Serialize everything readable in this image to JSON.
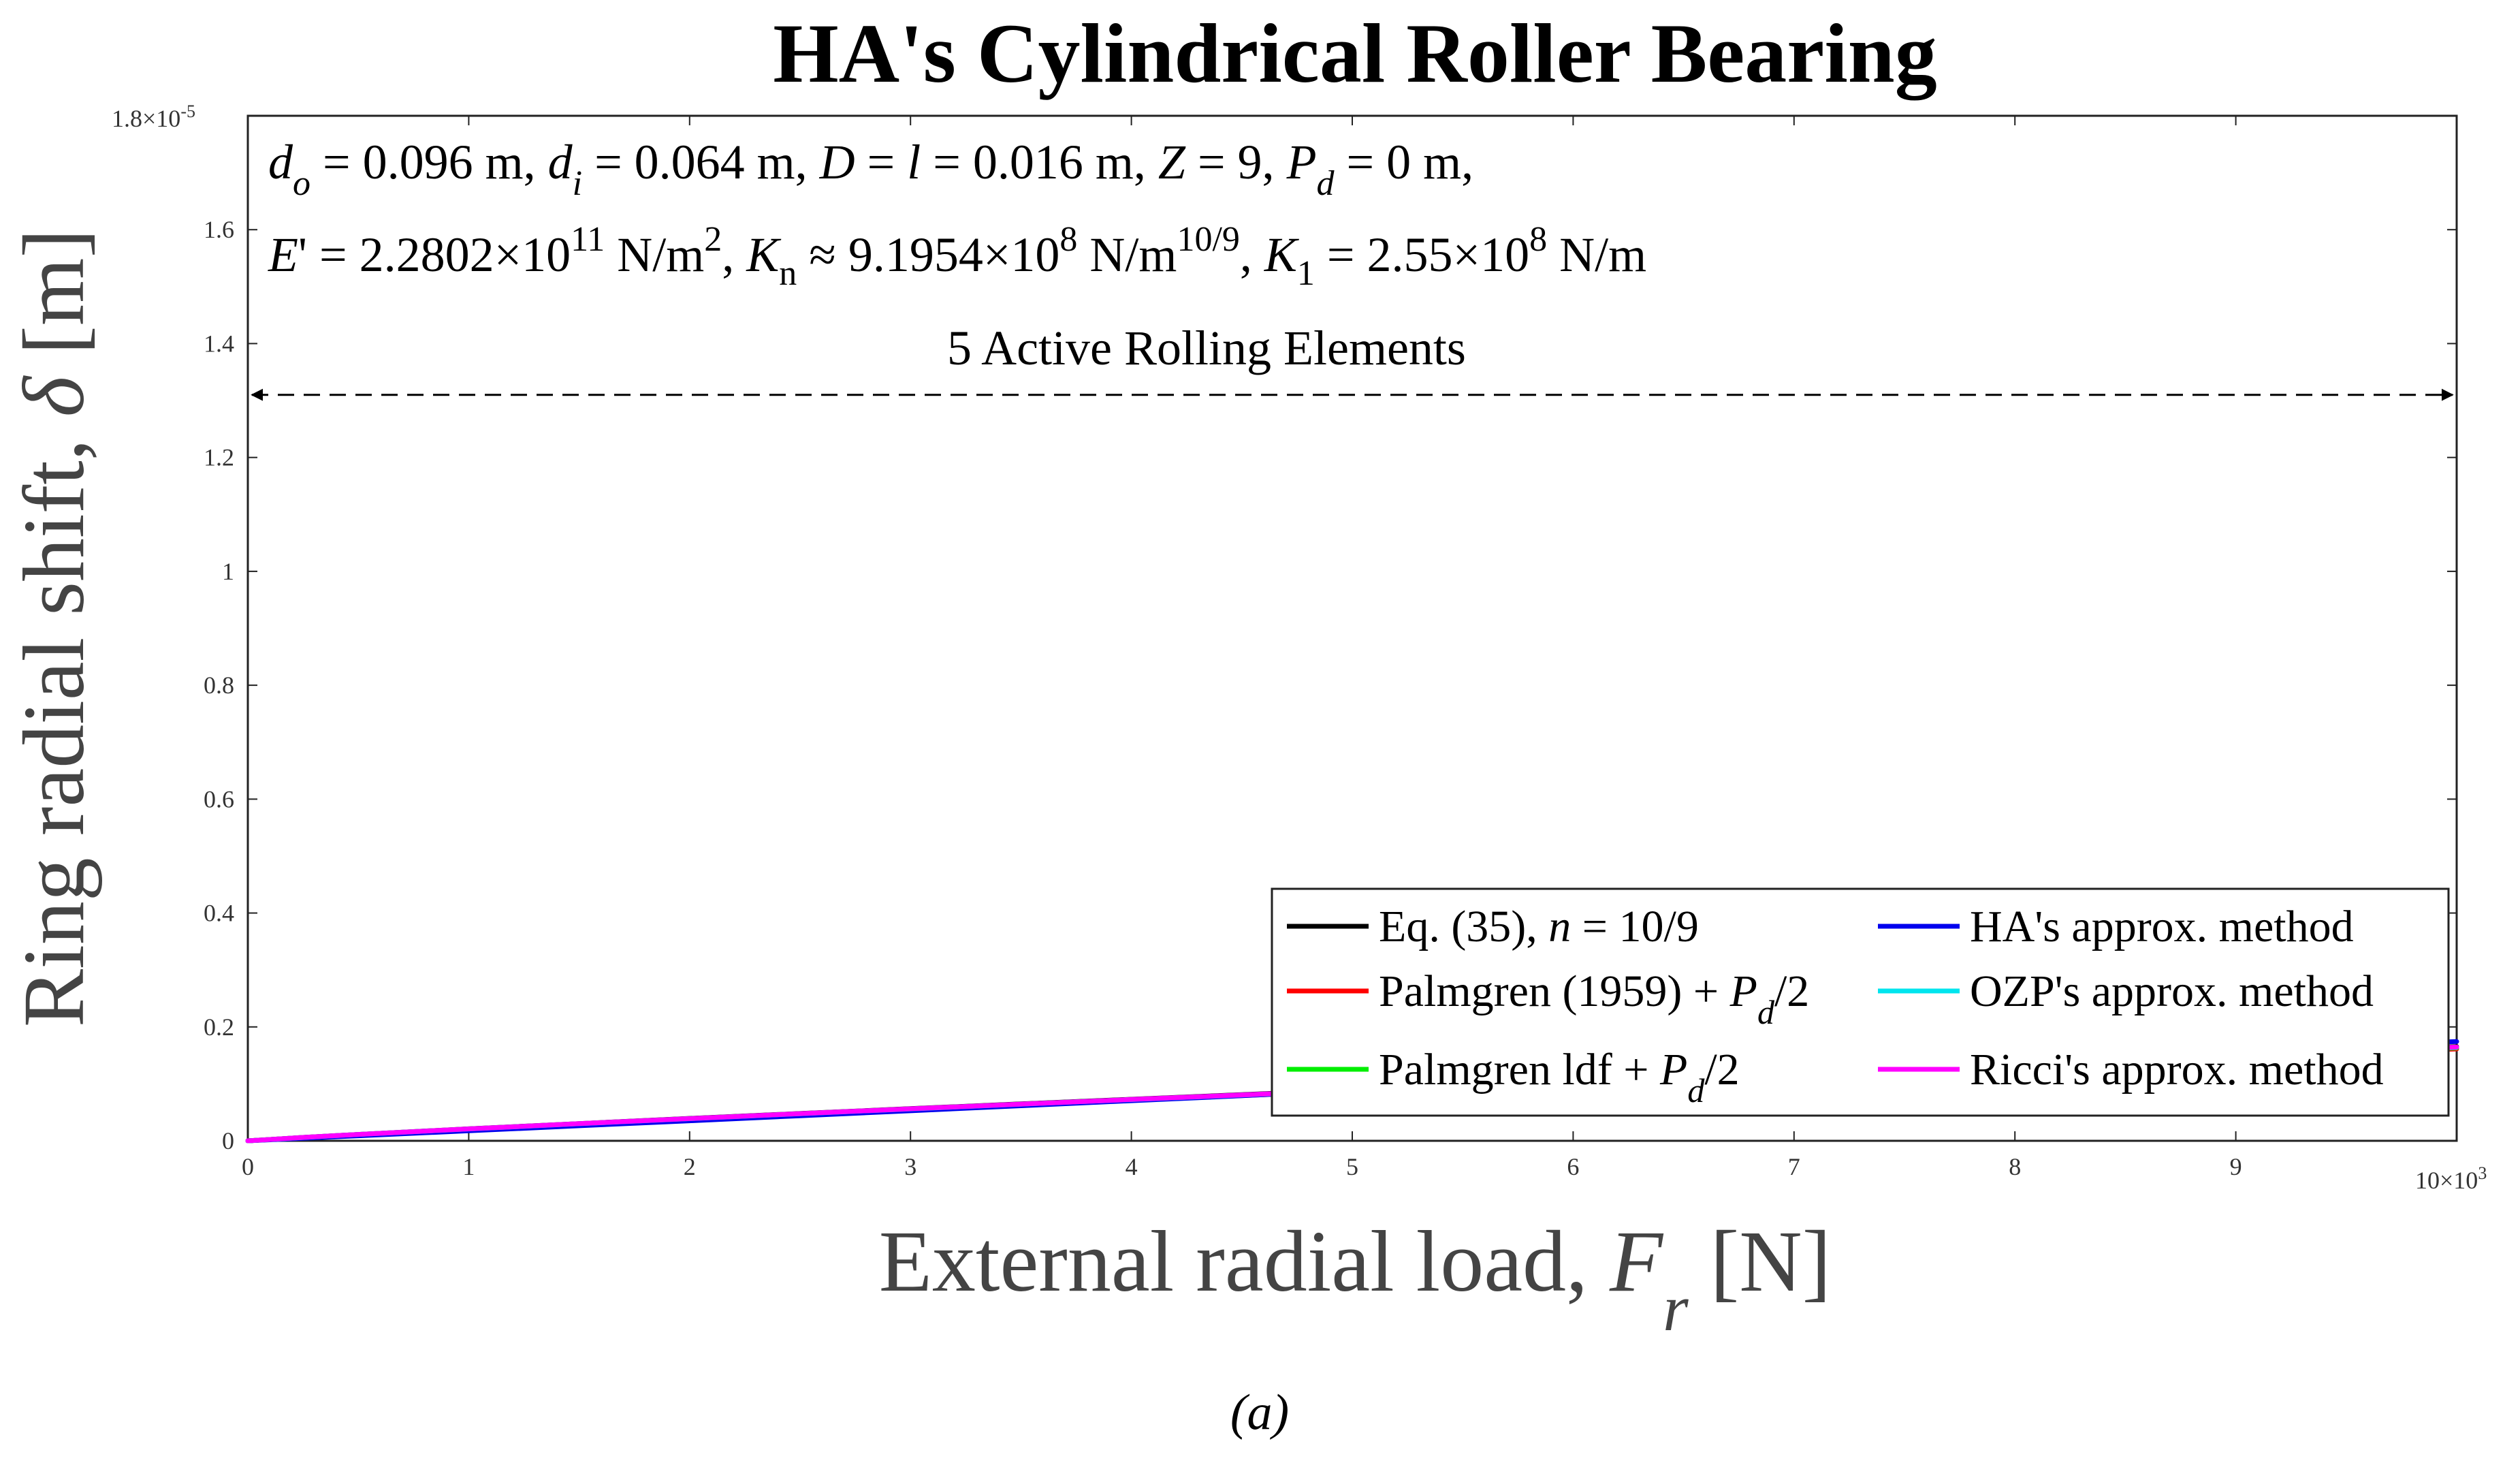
{
  "chart_data": {
    "type": "line",
    "title": "HA's Cylindrical Roller Bearing",
    "xlabel": {
      "main": "External radial load, ",
      "symbol": "F",
      "sub": "r",
      "unit": "  [N]"
    },
    "ylabel": {
      "main": "Ring radial shift, ",
      "symbol": "δ",
      "unit": " [m]"
    },
    "xlim": [
      0,
      10000
    ],
    "ylim": [
      0,
      1.8e-05
    ],
    "x_ticks": [
      0,
      1,
      2,
      3,
      4,
      5,
      6,
      7,
      8,
      9
    ],
    "y_ticks": [
      "0",
      "0.2",
      "0.4",
      "0.6",
      "0.8",
      "1",
      "1.2",
      "1.4",
      "1.6"
    ],
    "x_multiplier": {
      "base": "10×10",
      "exp": "3"
    },
    "y_multiplier": {
      "base": "1.8×10",
      "exp": "-5"
    },
    "grid": false,
    "legend_position": "bottom-right",
    "annotation_line1": {
      "t1": "d",
      "t1s": "o",
      "t2": " = 0.096 m, ",
      "t3": "d",
      "t3s": "i",
      "t4": " = 0.064 m, ",
      "t5": "D",
      "t6": " = ",
      "t7": "l",
      "t8": " = 0.016 m, ",
      "t9": "Z",
      "t10": " = 9, ",
      "t11": "P",
      "t11s": "d",
      "t12": " = 0 m,"
    },
    "annotation_line2": {
      "t1": "E",
      "t2": "' = 2.2802×10",
      "t2e": "11",
      "t3": " N/m",
      "t3e": "2",
      "t4": ", ",
      "t5": "K",
      "t5s": "n",
      "t6": " ≈ 9.1954×10",
      "t6e": "8",
      "t7": " N/m",
      "t7e": "10/9",
      "t8": ", ",
      "t9": "K",
      "t9s": "1",
      "t10": " = 2.55×10",
      "t10e": "8",
      "t11": " N/m"
    },
    "range_annotation": "5 Active Rolling Elements",
    "range_y": 1.31e-05,
    "caption": "(a)",
    "x": [
      0,
      250,
      500,
      1000,
      1500,
      2000,
      2500,
      3000,
      3500,
      4000,
      4500,
      5000,
      5500,
      6000,
      6500,
      7000,
      7500,
      8000,
      8500,
      9000,
      9500,
      10000
    ],
    "series": [
      {
        "name": "Eq. (35), n = 10/9",
        "color": "#000000",
        "values": [
          0,
          6e-08,
          1.13e-07,
          2.1e-07,
          3.03e-07,
          3.93e-07,
          4.8e-07,
          5.65e-07,
          6.48e-07,
          7.3e-07,
          8.11e-07,
          8.91e-07,
          9.7e-07,
          1.048e-06,
          1.126e-06,
          1.203e-06,
          1.279e-06,
          1.355e-06,
          1.43e-06,
          1.505e-06,
          1.58e-06,
          1.654e-06
        ]
      },
      {
        "name": "Palmgren (1959) + Pd/2",
        "color": "#ff0000",
        "values": [
          0,
          5.8e-08,
          1.1e-07,
          2.05e-07,
          2.96e-07,
          3.84e-07,
          4.7e-07,
          5.53e-07,
          6.35e-07,
          7.15e-07,
          7.94e-07,
          8.72e-07,
          9.49e-07,
          1.025e-06,
          1.101e-06,
          1.176e-06,
          1.25e-06,
          1.324e-06,
          1.397e-06,
          1.47e-06,
          1.542e-06,
          1.614e-06
        ]
      },
      {
        "name": "Palmgren ldf + Pd/2",
        "color": "#00ee00",
        "values": [
          0,
          5.9e-08,
          1.11e-07,
          2.07e-07,
          2.99e-07,
          3.88e-07,
          4.74e-07,
          5.58e-07,
          6.4e-07,
          7.21e-07,
          8.01e-07,
          8.8e-07,
          9.58e-07,
          1.035e-06,
          1.112e-06,
          1.188e-06,
          1.263e-06,
          1.338e-06,
          1.412e-06,
          1.486e-06,
          1.559e-06,
          1.632e-06
        ]
      },
      {
        "name": "HA's approx. method",
        "color": "#0000ee",
        "values": [
          0,
          4.4e-08,
          8.8e-08,
          1.76e-07,
          2.64e-07,
          3.52e-07,
          4.4e-07,
          5.28e-07,
          6.16e-07,
          7.04e-07,
          7.92e-07,
          8.8e-07,
          9.68e-07,
          1.056e-06,
          1.144e-06,
          1.232e-06,
          1.32e-06,
          1.408e-06,
          1.496e-06,
          1.584e-06,
          1.672e-06,
          1.742e-06
        ]
      },
      {
        "name": "OZP's approx. method",
        "color": "#00e5ee",
        "values": [
          0,
          5.9e-08,
          1.12e-07,
          2.08e-07,
          3e-07,
          3.89e-07,
          4.76e-07,
          5.6e-07,
          6.43e-07,
          7.24e-07,
          8.04e-07,
          8.83e-07,
          9.61e-07,
          1.039e-06,
          1.116e-06,
          1.192e-06,
          1.268e-06,
          1.343e-06,
          1.417e-06,
          1.491e-06,
          1.565e-06,
          1.64e-06
        ]
      },
      {
        "name": "Ricci's approx. method",
        "color": "#ff00ff",
        "values": [
          0,
          6e-08,
          1.13e-07,
          2.09e-07,
          3.01e-07,
          3.9e-07,
          4.77e-07,
          5.62e-07,
          6.45e-07,
          7.26e-07,
          8.06e-07,
          8.86e-07,
          9.64e-07,
          1.042e-06,
          1.119e-06,
          1.196e-06,
          1.272e-06,
          1.347e-06,
          1.422e-06,
          1.497e-06,
          1.572e-06,
          1.646e-06
        ]
      }
    ],
    "legend_labels": [
      {
        "text": "Eq. (35), ",
        "ital": "n",
        "rest": " = 10/9",
        "sub": "",
        "tail": ""
      },
      {
        "text": "Palmgren (1959) + ",
        "ital": "P",
        "sub": "d",
        "rest": "",
        "tail": "/2"
      },
      {
        "text": "Palmgren ldf + ",
        "ital": "P",
        "sub": "d",
        "rest": "",
        "tail": "/2"
      },
      {
        "text": "HA's approx. method",
        "ital": "",
        "sub": "",
        "rest": "",
        "tail": ""
      },
      {
        "text": "OZP's approx. method",
        "ital": "",
        "sub": "",
        "rest": "",
        "tail": ""
      },
      {
        "text": "Ricci's approx. method",
        "ital": "",
        "sub": "",
        "rest": "",
        "tail": ""
      }
    ]
  }
}
